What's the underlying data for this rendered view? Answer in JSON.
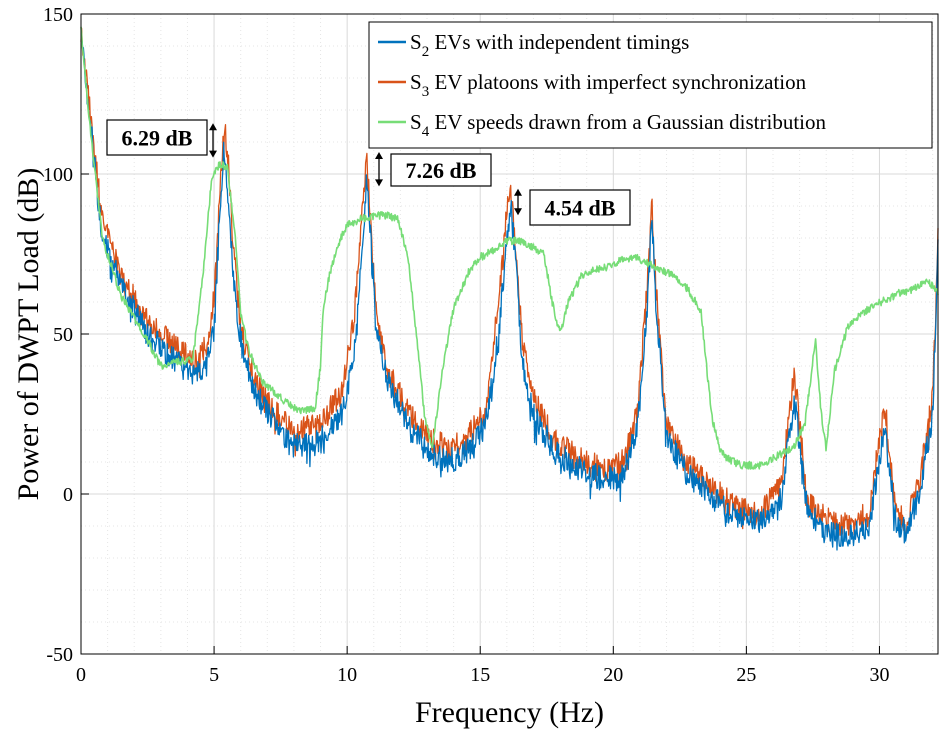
{
  "chart_data": {
    "type": "line",
    "title": "",
    "xlabel": "Frequency (Hz)",
    "ylabel": "Power of DWPT Load (dB)",
    "xlim": [
      0,
      32.2
    ],
    "ylim": [
      -50,
      150
    ],
    "xticks": [
      0,
      5,
      10,
      15,
      20,
      25,
      30
    ],
    "yticks": [
      -50,
      0,
      50,
      100,
      150
    ],
    "grid": true,
    "minor_grid": true,
    "legend_position": "top-right",
    "series": [
      {
        "name": "S2 EVs with independent timings",
        "label_main": "S",
        "label_sub": "2",
        "label_rest": " EVs with independent timings",
        "color": "#0072BD",
        "x": [
          0,
          0.3,
          0.8,
          1.5,
          2.5,
          3.5,
          4.2,
          4.7,
          5.0,
          5.2,
          5.35,
          5.5,
          5.7,
          6.0,
          6.5,
          7.2,
          8.0,
          9.0,
          9.8,
          10.3,
          10.6,
          10.72,
          10.85,
          11.1,
          11.5,
          12.2,
          13.0,
          13.8,
          14.5,
          15.2,
          15.7,
          16.0,
          16.15,
          16.3,
          16.6,
          17.0,
          17.8,
          18.7,
          19.5,
          20.3,
          20.9,
          21.3,
          21.45,
          21.6,
          22.0,
          22.7,
          23.5,
          24.5,
          25.5,
          26.3,
          26.8,
          27.3,
          28.0,
          28.8,
          29.6,
          30.2,
          30.6,
          31.0,
          31.5,
          32.0,
          32.2
        ],
        "values": [
          145,
          120,
          80,
          65,
          50,
          42,
          38,
          40,
          52,
          85,
          107,
          95,
          70,
          48,
          32,
          23,
          15,
          17,
          25,
          45,
          80,
          98,
          85,
          50,
          36,
          23,
          14,
          10,
          13,
          22,
          50,
          80,
          90,
          75,
          40,
          25,
          13,
          8,
          5,
          5,
          20,
          60,
          88,
          60,
          18,
          7,
          1,
          -7,
          -9,
          -2,
          30,
          -6,
          -12,
          -14,
          -10,
          20,
          -8,
          -12,
          0,
          25,
          78
        ]
      },
      {
        "name": "S3 EV platoons with imperfect synchronization",
        "label_main": "S",
        "label_sub": "3",
        "label_rest": " EV platoons with imperfect synchronization",
        "color": "#D95319",
        "x": [
          0,
          0.3,
          0.8,
          1.5,
          2.5,
          3.5,
          4.2,
          4.7,
          5.0,
          5.2,
          5.4,
          5.55,
          5.75,
          6.0,
          6.5,
          7.2,
          8.0,
          9.0,
          9.8,
          10.3,
          10.6,
          10.72,
          10.85,
          11.1,
          11.5,
          12.2,
          13.0,
          13.8,
          14.5,
          15.2,
          15.7,
          16.0,
          16.15,
          16.3,
          16.6,
          17.0,
          17.8,
          18.7,
          19.5,
          20.3,
          20.9,
          21.3,
          21.45,
          21.6,
          22.0,
          22.7,
          23.5,
          24.5,
          25.5,
          26.3,
          26.8,
          27.3,
          28.0,
          28.8,
          29.6,
          30.2,
          30.6,
          31.0,
          31.5,
          32.0,
          32.2
        ],
        "values": [
          145,
          122,
          85,
          68,
          54,
          46,
          42,
          46,
          62,
          95,
          114,
          102,
          75,
          52,
          36,
          27,
          19,
          22,
          32,
          58,
          92,
          105,
          90,
          55,
          40,
          27,
          18,
          14,
          17,
          27,
          60,
          88,
          93,
          80,
          46,
          30,
          17,
          11,
          8,
          9,
          25,
          68,
          90,
          65,
          22,
          10,
          4,
          -4,
          -6,
          2,
          38,
          -3,
          -8,
          -10,
          -6,
          28,
          -5,
          -9,
          4,
          30,
          80
        ]
      },
      {
        "name": "S4 EV speeds drawn from a Gaussian distribution",
        "label_main": "S",
        "label_sub": "4",
        "label_rest": " EV speeds drawn from a Gaussian distribution",
        "color": "#77DD77",
        "x": [
          0,
          0.3,
          0.8,
          1.5,
          2.5,
          3.0,
          3.5,
          4.2,
          4.6,
          4.9,
          5.2,
          5.5,
          5.8,
          6.0,
          6.3,
          6.8,
          7.5,
          8.2,
          8.8,
          9.0,
          9.1,
          9.3,
          9.6,
          10.0,
          10.5,
          11.0,
          11.5,
          11.9,
          12.1,
          12.3,
          12.6,
          12.9,
          13.2,
          13.6,
          14.0,
          14.3,
          14.6,
          15.0,
          15.5,
          16.0,
          16.5,
          17.0,
          17.4,
          17.7,
          18.0,
          18.3,
          18.8,
          19.3,
          19.8,
          20.3,
          20.8,
          21.3,
          21.8,
          22.3,
          22.8,
          23.3,
          23.7,
          24.0,
          24.3,
          24.8,
          25.5,
          26.2,
          26.8,
          27.2,
          27.6,
          27.8,
          28.0,
          28.3,
          28.8,
          29.3,
          29.8,
          30.3,
          30.8,
          31.3,
          31.8,
          32.2
        ],
        "values": [
          145,
          118,
          80,
          62,
          48,
          40,
          41,
          42,
          70,
          98,
          103,
          102,
          80,
          56,
          45,
          35,
          30,
          26,
          27,
          40,
          58,
          67,
          77,
          84,
          86,
          87,
          87,
          86,
          80,
          73,
          50,
          25,
          14,
          40,
          58,
          64,
          70,
          74,
          76,
          79,
          79,
          77,
          75,
          60,
          50,
          60,
          68,
          70,
          71,
          73,
          74,
          72,
          70,
          68,
          64,
          57,
          24,
          14,
          11,
          9,
          9,
          12,
          15,
          22,
          48,
          26,
          14,
          38,
          52,
          56,
          59,
          61,
          63,
          64,
          67,
          63
        ]
      }
    ],
    "annotations": [
      {
        "text": "6.29 dB",
        "x": 5.35,
        "y1": 107,
        "y2": 114
      },
      {
        "text": "7.26 dB",
        "x": 10.72,
        "y1": 98,
        "y2": 105
      },
      {
        "text": "4.54 dB",
        "x": 16.15,
        "y1": 89,
        "y2": 93.5
      }
    ]
  }
}
